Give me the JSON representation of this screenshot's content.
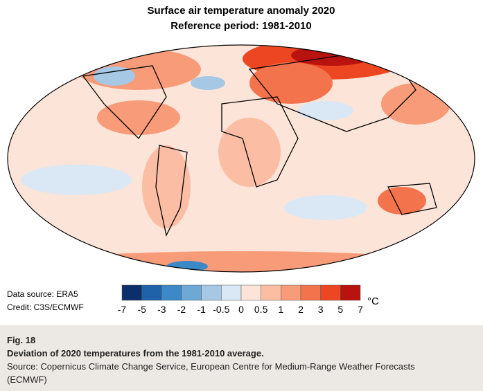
{
  "header": {
    "title": "Surface air temperature anomaly 2020",
    "subtitle": "Reference period: 1981-2010"
  },
  "colorbar": {
    "ticks": [
      -7,
      -5,
      -3,
      -2,
      -1,
      -0.5,
      0,
      0.5,
      1,
      2,
      3,
      5,
      7
    ],
    "colors": [
      "#0b2f6b",
      "#1f62aa",
      "#3d88c6",
      "#6ea9d6",
      "#a6c8e4",
      "#d9e8f4",
      "#fde4d8",
      "#fbbea4",
      "#f89b79",
      "#f3734c",
      "#ec4722",
      "#b8130e"
    ],
    "unit": "°C"
  },
  "source": {
    "data": "Data source: ERA5",
    "credit": "Credit: C3S/ECMWF"
  },
  "caption": {
    "figure": "Fig. 18",
    "heading": "Deviation of 2020 temperatures from the 1981-2010 average.",
    "text": "Source: Copernicus Climate Change Service, European Centre for Medium-Range Weather Forecasts (ECMWF)"
  }
}
